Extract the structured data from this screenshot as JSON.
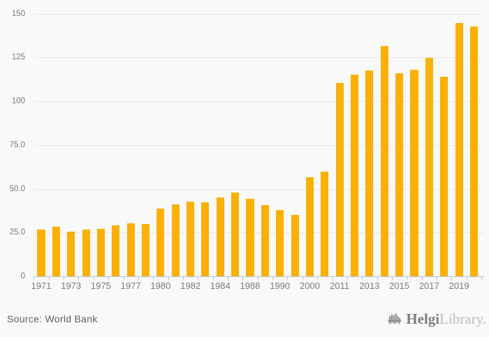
{
  "chart_data": {
    "type": "bar",
    "title": "",
    "xlabel": "",
    "ylabel": "",
    "ylim": [
      0,
      150
    ],
    "grid": "horizontal",
    "legend": "none",
    "source_note": "Source: World Bank",
    "yticks": [
      {
        "label": "150",
        "value": 150
      },
      {
        "label": "125",
        "value": 125
      },
      {
        "label": "100",
        "value": 100
      },
      {
        "label": "75.0",
        "value": 75
      },
      {
        "label": "50.0",
        "value": 50
      },
      {
        "label": "25.0",
        "value": 25
      },
      {
        "label": "0",
        "value": 0
      }
    ],
    "bars": [
      {
        "label": "1971",
        "value": 26.8
      },
      {
        "label": "",
        "value": 28.2
      },
      {
        "label": "1973",
        "value": 25.5
      },
      {
        "label": "",
        "value": 26.8
      },
      {
        "label": "1975",
        "value": 27.1
      },
      {
        "label": "",
        "value": 29.0
      },
      {
        "label": "1977",
        "value": 30.2
      },
      {
        "label": "",
        "value": 30.1
      },
      {
        "label": "1980",
        "value": 38.6
      },
      {
        "label": "",
        "value": 40.9
      },
      {
        "label": "1982",
        "value": 42.7
      },
      {
        "label": "",
        "value": 42.1
      },
      {
        "label": "1984",
        "value": 45.0
      },
      {
        "label": "",
        "value": 47.8
      },
      {
        "label": "1988",
        "value": 44.4
      },
      {
        "label": "",
        "value": 40.8
      },
      {
        "label": "1990",
        "value": 37.9
      },
      {
        "label": "",
        "value": 35.2
      },
      {
        "label": "2000",
        "value": 56.8
      },
      {
        "label": "",
        "value": 59.8
      },
      {
        "label": "2011",
        "value": 110.3
      },
      {
        "label": "",
        "value": 115.2
      },
      {
        "label": "2013",
        "value": 117.8
      },
      {
        "label": "",
        "value": 131.6
      },
      {
        "label": "2015",
        "value": 116.2
      },
      {
        "label": "",
        "value": 118.2
      },
      {
        "label": "2017",
        "value": 124.7
      },
      {
        "label": "",
        "value": 114.1
      },
      {
        "label": "2019",
        "value": 144.9
      },
      {
        "label": "",
        "value": 142.8
      }
    ]
  },
  "branding": {
    "logo_bold": "Helgi",
    "logo_light": "Library.",
    "logo_icon": "factory-bars-icon"
  },
  "colors": {
    "bar": "#FAB005",
    "background": "#F9F9F9",
    "gridline": "#E8E8E8",
    "axis": "#B9C3D6",
    "tick_label": "#74787E",
    "source_text": "#606060",
    "logo_dark": "#7E7E7E",
    "logo_light": "#BCBCBC",
    "logo_icon": "#8A8F94"
  }
}
